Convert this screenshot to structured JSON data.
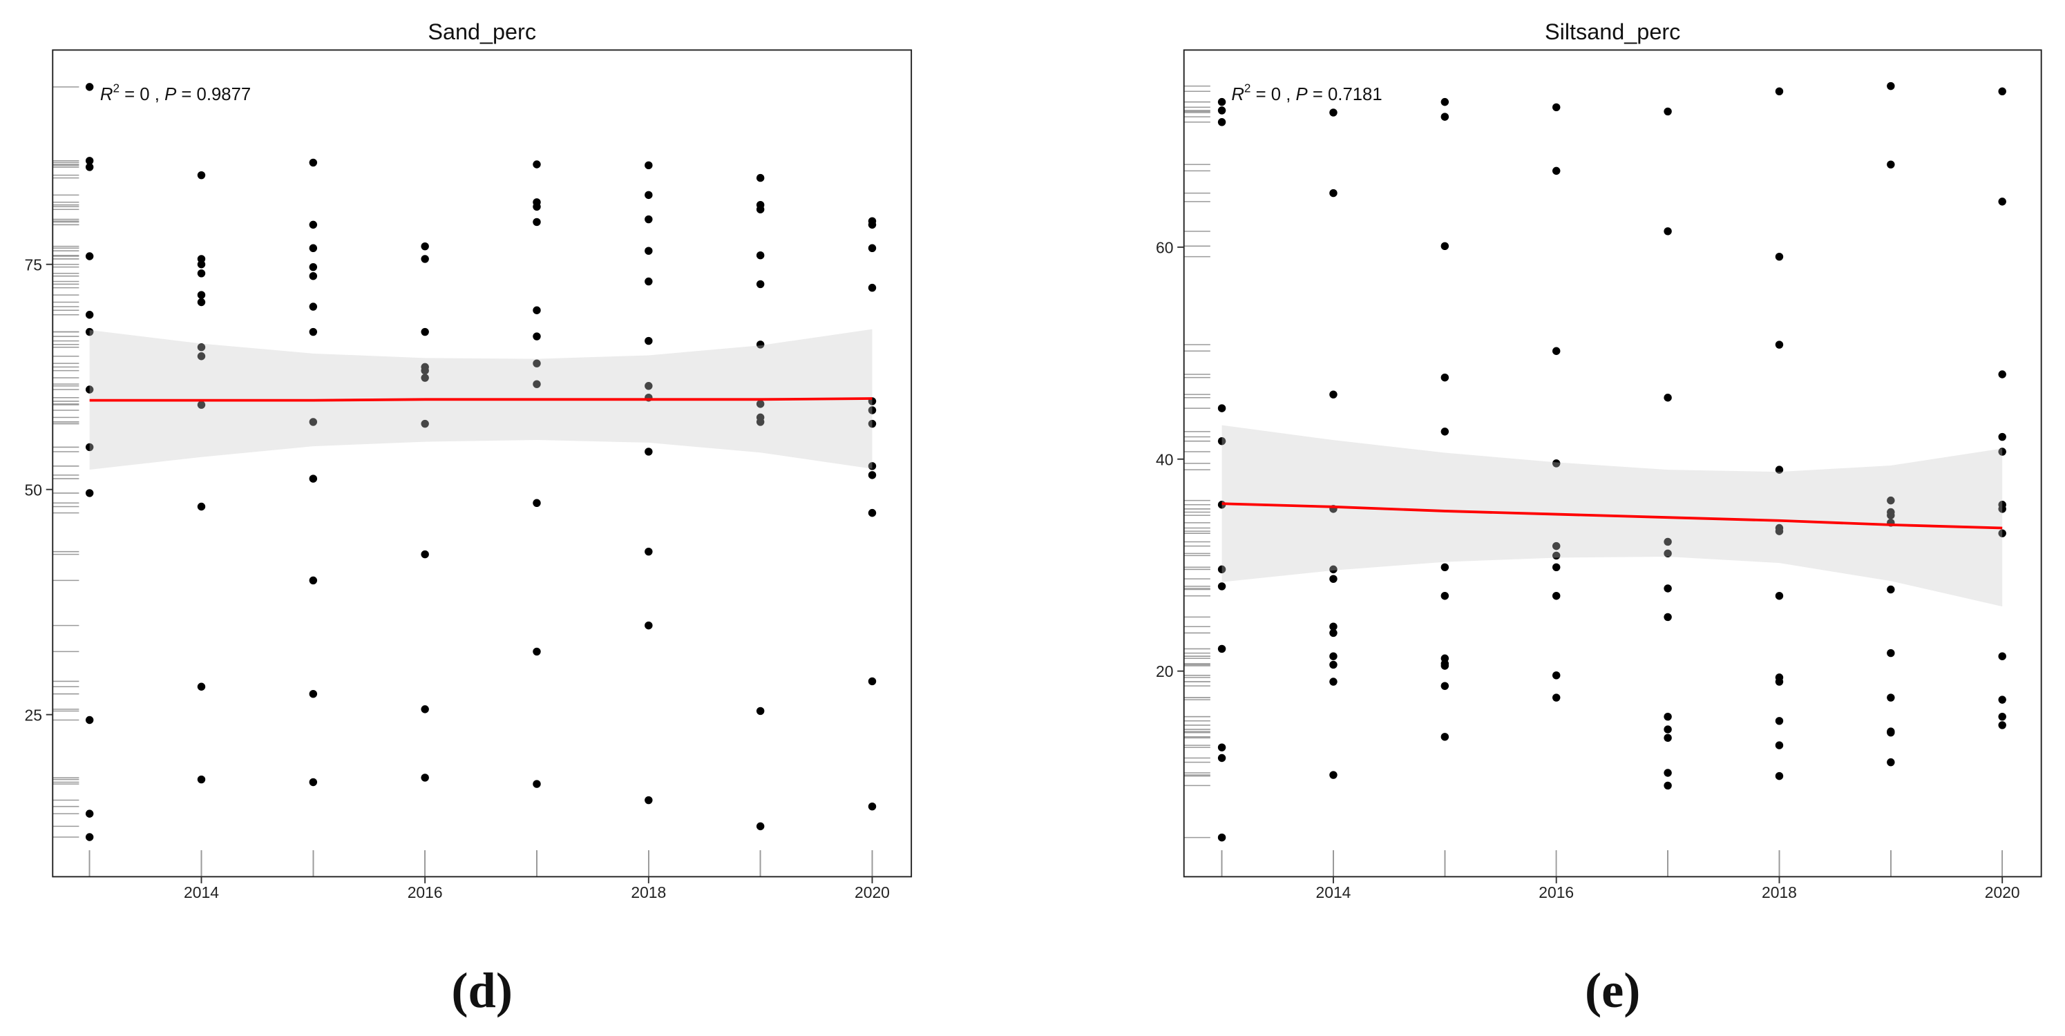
{
  "chart_data": [
    {
      "type": "scatter",
      "title": "Sand_perc",
      "annotation": [
        "R",
        "2",
        " = 0 , ",
        "P",
        " = 0.9877"
      ],
      "panel_label": "(d)",
      "xlim": [
        2012.67,
        2020.35
      ],
      "xticks": [
        2014,
        2016,
        2018,
        2020
      ],
      "ylim": [
        7.0,
        98.8
      ],
      "yticks": [
        25,
        50,
        75
      ],
      "color": "#000000",
      "rug": true,
      "x": [
        2013,
        2013,
        2013,
        2013,
        2013,
        2013,
        2013,
        2013,
        2013,
        2013,
        2013,
        2013,
        2014,
        2014,
        2014,
        2014,
        2014,
        2014,
        2014,
        2014,
        2014,
        2014,
        2014,
        2014,
        2015,
        2015,
        2015,
        2015,
        2015,
        2015,
        2015,
        2015,
        2015,
        2015,
        2015,
        2015,
        2016,
        2016,
        2016,
        2016,
        2016,
        2016,
        2016,
        2016,
        2016,
        2016,
        2017,
        2017,
        2017,
        2017,
        2017,
        2017,
        2017,
        2017,
        2017,
        2017,
        2017,
        2018,
        2018,
        2018,
        2018,
        2018,
        2018,
        2018,
        2018,
        2018,
        2018,
        2018,
        2018,
        2019,
        2019,
        2019,
        2019,
        2019,
        2019,
        2019,
        2019,
        2019,
        2019,
        2019,
        2020,
        2020,
        2020,
        2020,
        2020,
        2020,
        2020,
        2020,
        2020,
        2020,
        2020,
        2020
      ],
      "values": [
        94.7,
        86.5,
        85.8,
        75.9,
        69.4,
        67.5,
        61.1,
        54.7,
        49.6,
        24.4,
        14.0,
        11.4,
        84.9,
        75.6,
        75.0,
        74.0,
        71.6,
        70.8,
        65.8,
        64.8,
        59.4,
        48.1,
        28.1,
        17.8,
        86.3,
        79.4,
        76.8,
        74.7,
        73.7,
        70.3,
        67.5,
        57.5,
        51.2,
        39.9,
        27.3,
        17.5,
        77.0,
        75.6,
        67.5,
        63.6,
        63.2,
        62.4,
        57.3,
        42.8,
        25.6,
        18.0,
        86.1,
        81.9,
        81.4,
        79.7,
        69.9,
        67.0,
        64.0,
        61.7,
        48.5,
        32.0,
        17.3,
        86.0,
        82.7,
        80.0,
        76.5,
        73.1,
        66.5,
        61.5,
        60.2,
        54.2,
        43.1,
        34.9,
        15.5,
        84.6,
        81.6,
        81.1,
        76.0,
        72.8,
        66.1,
        59.5,
        58.0,
        57.5,
        25.4,
        12.6,
        79.8,
        79.4,
        76.8,
        72.4,
        59.8,
        58.8,
        57.3,
        52.6,
        51.6,
        47.4,
        28.7,
        14.8
      ],
      "fit": {
        "color": "#ff0000",
        "x": [
          2013,
          2014,
          2015,
          2016,
          2017,
          2018,
          2019,
          2020
        ],
        "values": [
          59.9,
          59.9,
          59.9,
          60.0,
          60.0,
          60.0,
          60.0,
          60.1
        ],
        "lower": [
          52.2,
          53.6,
          54.8,
          55.3,
          55.5,
          55.2,
          54.1,
          52.3
        ],
        "upper": [
          67.7,
          66.2,
          65.1,
          64.6,
          64.5,
          64.9,
          66.0,
          67.8
        ]
      }
    },
    {
      "type": "scatter",
      "title": "Siltsand_perc",
      "annotation": [
        "R",
        "2",
        " = 0 , ",
        "P",
        " = 0.7181"
      ],
      "panel_label": "(e)",
      "xlim": [
        2012.66,
        2020.35
      ],
      "xticks": [
        2014,
        2016,
        2018,
        2020
      ],
      "ylim": [
        0.6,
        78.6
      ],
      "yticks": [
        20,
        40,
        60
      ],
      "color": "#000000",
      "rug": true,
      "x": [
        2013,
        2013,
        2013,
        2013,
        2013,
        2013,
        2013,
        2013,
        2013,
        2013,
        2013,
        2013,
        2014,
        2014,
        2014,
        2014,
        2014,
        2014,
        2014,
        2014,
        2014,
        2014,
        2014,
        2014,
        2015,
        2015,
        2015,
        2015,
        2015,
        2015,
        2015,
        2015,
        2015,
        2015,
        2015,
        2015,
        2016,
        2016,
        2016,
        2016,
        2016,
        2016,
        2016,
        2016,
        2016,
        2016,
        2017,
        2017,
        2017,
        2017,
        2017,
        2017,
        2017,
        2017,
        2017,
        2017,
        2017,
        2017,
        2018,
        2018,
        2018,
        2018,
        2018,
        2018,
        2018,
        2018,
        2018,
        2018,
        2018,
        2018,
        2019,
        2019,
        2019,
        2019,
        2019,
        2019,
        2019,
        2019,
        2019,
        2019,
        2019,
        2019,
        2020,
        2020,
        2020,
        2020,
        2020,
        2020,
        2020,
        2020,
        2020,
        2020,
        2020,
        2020
      ],
      "values": [
        73.7,
        72.9,
        71.8,
        44.8,
        41.7,
        35.7,
        29.6,
        28.0,
        22.1,
        12.8,
        11.8,
        4.3,
        72.7,
        65.1,
        46.1,
        35.3,
        29.6,
        28.7,
        24.2,
        23.6,
        21.4,
        20.6,
        19.0,
        10.2,
        73.7,
        72.3,
        60.1,
        47.7,
        42.6,
        29.8,
        27.1,
        21.2,
        20.7,
        20.5,
        18.6,
        13.8,
        73.2,
        67.2,
        50.2,
        39.6,
        31.8,
        30.9,
        29.8,
        27.1,
        19.6,
        17.5,
        72.8,
        61.5,
        45.8,
        32.2,
        31.1,
        27.8,
        25.1,
        15.7,
        14.5,
        13.7,
        10.4,
        9.2,
        74.7,
        59.1,
        50.8,
        39.0,
        33.5,
        33.2,
        27.1,
        19.4,
        19.0,
        15.3,
        13.0,
        10.1,
        75.2,
        67.8,
        36.1,
        35.0,
        34.7,
        34.0,
        27.7,
        21.7,
        17.5,
        14.3,
        14.2,
        11.4,
        74.7,
        64.3,
        48.0,
        42.1,
        40.7,
        35.7,
        35.3,
        33.0,
        21.4,
        17.3,
        15.7,
        14.9
      ],
      "fit": {
        "color": "#ff0000",
        "x": [
          2013,
          2014,
          2015,
          2016,
          2017,
          2018,
          2019,
          2020
        ],
        "values": [
          35.8,
          35.5,
          35.1,
          34.8,
          34.5,
          34.2,
          33.8,
          33.5
        ],
        "lower": [
          28.4,
          29.5,
          30.3,
          30.7,
          30.8,
          30.2,
          28.5,
          26.1
        ],
        "upper": [
          43.2,
          41.8,
          40.6,
          39.7,
          39.0,
          38.8,
          39.4,
          41.0
        ]
      }
    }
  ]
}
